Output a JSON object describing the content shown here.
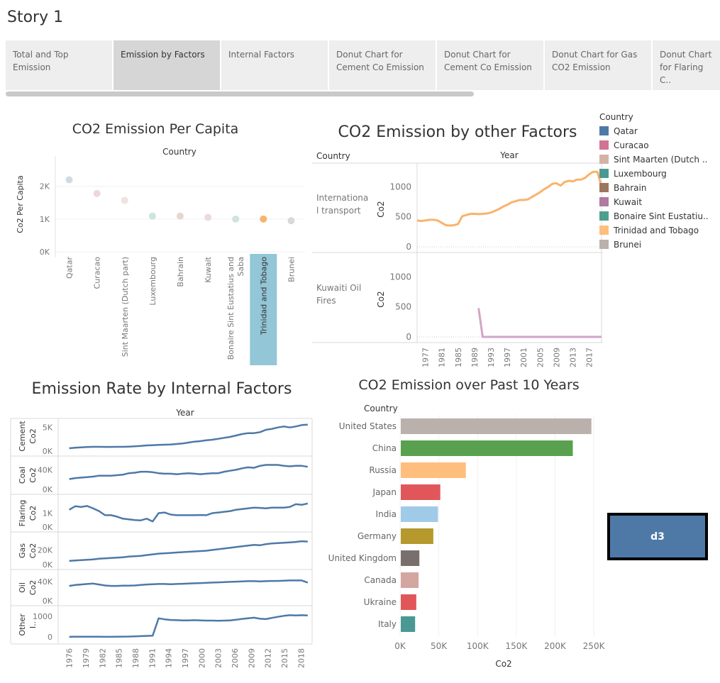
{
  "story": {
    "title": "Story 1",
    "tabs": [
      "Total and Top Emission",
      "Emission by Factors",
      "Internal Factors",
      "Donut Chart for Cement Co Emission",
      "Donut Chart for Cement Co Emission",
      "Donut Chart for Gas CO2 Emission",
      "Donut Chart for Flaring C.."
    ],
    "active_tab": 1
  },
  "button": {
    "label": "d3"
  },
  "chart_data": [
    {
      "type": "scatter",
      "title": "CO2 Emission Per Capita",
      "column_header": "Country",
      "ylabel": "Co2 Per Capita",
      "yticks": [
        "0K",
        "1K",
        "2K"
      ],
      "ylim": [
        0,
        2600
      ],
      "highlighted": "Trinidad and Tobago",
      "points": [
        {
          "country": "Qatar",
          "value": 2200,
          "color": "#cfdde3"
        },
        {
          "country": "Curacao",
          "value": 1780,
          "color": "#efd6dc"
        },
        {
          "country": "Sint Maarten (Dutch part)",
          "value": 1570,
          "color": "#ece4e1"
        },
        {
          "country": "Luxembourg",
          "value": 1090,
          "color": "#cde3df"
        },
        {
          "country": "Bahrain",
          "value": 1090,
          "color": "#e6d7d0"
        },
        {
          "country": "Kuwait",
          "value": 1050,
          "color": "#ead9e6"
        },
        {
          "country": "Bonaire Sint Eustatius and Saba",
          "value": 1000,
          "color": "#cfe3df"
        },
        {
          "country": "Trinidad and Tobago",
          "value": 1000,
          "color": "#f9b36b"
        },
        {
          "country": "Brunei",
          "value": 950,
          "color": "#dcd8d7"
        }
      ]
    },
    {
      "type": "line",
      "title": "CO2 Emission by other Factors",
      "row_header": "Country",
      "column_header": "Year",
      "ylabel": "Co2",
      "xticks": [
        "1977",
        "1981",
        "1985",
        "1989",
        "1993",
        "1997",
        "2001",
        "2005",
        "2009",
        "2013",
        "2017"
      ],
      "ylim": [
        0,
        1300
      ],
      "yticks": [
        "0",
        "500",
        "1000"
      ],
      "series": [
        {
          "name": "Internationa l transport",
          "color": "#f9b36b",
          "x": [
            1975,
            1976,
            1977,
            1978,
            1979,
            1980,
            1981,
            1982,
            1983,
            1984,
            1985,
            1986,
            1987,
            1988,
            1989,
            1990,
            1991,
            1992,
            1993,
            1994,
            1995,
            1996,
            1997,
            1998,
            1999,
            2000,
            2001,
            2002,
            2003,
            2004,
            2005,
            2006,
            2007,
            2008,
            2009,
            2010,
            2011,
            2012,
            2013,
            2014,
            2015,
            2016,
            2017,
            2018,
            2019,
            2020
          ],
          "y": [
            440,
            430,
            440,
            450,
            450,
            440,
            400,
            360,
            355,
            360,
            380,
            510,
            530,
            550,
            550,
            545,
            550,
            555,
            570,
            600,
            630,
            670,
            700,
            740,
            760,
            780,
            780,
            790,
            830,
            870,
            910,
            960,
            1000,
            1050,
            1060,
            1020,
            1080,
            1100,
            1090,
            1120,
            1120,
            1150,
            1210,
            1250,
            1250,
            1000
          ]
        },
        {
          "name": "Kuwaiti Oil Fires",
          "color": "#d3a4c9",
          "x": [
            1990,
            1991,
            1992,
            2020
          ],
          "y": [
            480,
            0,
            0,
            0
          ]
        }
      ]
    },
    {
      "type": "line",
      "title": "Emission Rate by Internal Factors",
      "column_header": "Year",
      "xticks": [
        "1976",
        "1979",
        "1982",
        "1985",
        "1988",
        "1991",
        "1994",
        "1997",
        "2000",
        "2003",
        "2006",
        "2009",
        "2012",
        "2015",
        "2018"
      ],
      "color": "#4e79a7",
      "panels": [
        {
          "label": "Cement Co2",
          "yticks": [
            "0K",
            "5K"
          ],
          "ylim": [
            0,
            6000
          ],
          "y": [
            600,
            700,
            800,
            850,
            900,
            900,
            880,
            880,
            900,
            900,
            950,
            1000,
            1100,
            1200,
            1250,
            1300,
            1350,
            1400,
            1500,
            1600,
            1800,
            2000,
            2100,
            2300,
            2400,
            2600,
            2800,
            3000,
            3300,
            3600,
            3800,
            3800,
            4000,
            4500,
            4700,
            5000,
            5200,
            5000,
            5200,
            5500,
            5600
          ]
        },
        {
          "label": "Coal Co2",
          "yticks": [
            "0K",
            "40K"
          ],
          "ylim": [
            0,
            55000
          ],
          "y": [
            21000,
            23000,
            24000,
            25000,
            26000,
            28000,
            28000,
            28000,
            29000,
            30000,
            33000,
            34000,
            36000,
            36000,
            35000,
            33000,
            32000,
            32000,
            31000,
            32000,
            33000,
            32000,
            31000,
            32000,
            33000,
            33000,
            36000,
            38000,
            40000,
            43000,
            45000,
            44000,
            48000,
            50000,
            50000,
            50000,
            48000,
            47000,
            48000,
            48000,
            46000
          ]
        },
        {
          "label": "Flaring Co2",
          "yticks": [
            "0K",
            "1K"
          ],
          "ylim": [
            0,
            1900
          ],
          "y": [
            1250,
            1500,
            1450,
            1520,
            1350,
            1150,
            850,
            850,
            750,
            600,
            550,
            500,
            480,
            600,
            400,
            1000,
            1050,
            900,
            850,
            850,
            850,
            850,
            870,
            850,
            1000,
            1050,
            1100,
            1150,
            1250,
            1300,
            1350,
            1400,
            1380,
            1350,
            1400,
            1400,
            1400,
            1450,
            1650,
            1600,
            1700
          ]
        },
        {
          "label": "Gas Co2",
          "yticks": [
            "0K",
            "20K"
          ],
          "ylim": [
            0,
            36000
          ],
          "y": [
            5000,
            5500,
            6000,
            6500,
            7000,
            8000,
            8500,
            9000,
            9500,
            10000,
            11000,
            11500,
            12000,
            13000,
            14000,
            15000,
            15500,
            16000,
            16500,
            17000,
            17500,
            18000,
            18500,
            19000,
            20000,
            21000,
            22000,
            23000,
            24000,
            25000,
            26000,
            27000,
            26500,
            28000,
            29000,
            29500,
            30000,
            30500,
            31000,
            32000,
            31500
          ]
        },
        {
          "label": "Oil Co2",
          "yticks": [
            "0K",
            "40K"
          ],
          "ylim": [
            0,
            52000
          ],
          "y": [
            31000,
            33000,
            34000,
            35000,
            36000,
            34000,
            32000,
            31000,
            31000,
            31500,
            31500,
            32000,
            33000,
            34000,
            34500,
            35000,
            35000,
            34500,
            35000,
            35500,
            36000,
            36500,
            37000,
            37500,
            38000,
            38500,
            39000,
            39500,
            40000,
            40500,
            41000,
            41000,
            40500,
            41000,
            41500,
            41500,
            42000,
            42500,
            42500,
            42500,
            38000
          ]
        },
        {
          "label": "Other I..",
          "yticks": [
            "0",
            "1000"
          ],
          "ylim": [
            -100,
            1200
          ],
          "y": [
            5,
            8,
            10,
            12,
            10,
            8,
            5,
            5,
            10,
            15,
            20,
            30,
            40,
            50,
            60,
            900,
            850,
            820,
            810,
            800,
            800,
            810,
            800,
            790,
            790,
            780,
            790,
            800,
            830,
            870,
            900,
            930,
            880,
            860,
            920,
            970,
            1020,
            1050,
            1040,
            1050,
            1040
          ]
        }
      ]
    },
    {
      "type": "bar",
      "orientation": "horizontal",
      "title": "CO2 Emission over Past 10 Years",
      "row_header": "Country",
      "xlabel": "Co2",
      "xticks": [
        "0K",
        "50K",
        "100K",
        "150K",
        "200K",
        "250K"
      ],
      "xlim": [
        0,
        260000
      ],
      "categories": [
        "United States",
        "China",
        "Russia",
        "Japan",
        "India",
        "Germany",
        "United Kingdom",
        "Canada",
        "Ukraine",
        "Italy"
      ],
      "values": [
        246000,
        222000,
        84000,
        51000,
        48000,
        42000,
        24000,
        23000,
        20000,
        18500
      ],
      "colors": [
        "#bab0ac",
        "#59a14f",
        "#ffbe7d",
        "#e15759",
        "#a0cbe8",
        "#b6992d",
        "#79706e",
        "#d4a6a0",
        "#e15759",
        "#499894"
      ]
    }
  ],
  "legend": {
    "title": "Country",
    "items": [
      {
        "label": "Qatar",
        "color": "#4e79a7"
      },
      {
        "label": "Curacao",
        "color": "#d37295"
      },
      {
        "label": "Sint Maarten (Dutch ..",
        "color": "#d4b3a6"
      },
      {
        "label": "Luxembourg",
        "color": "#499894"
      },
      {
        "label": "Bahrain",
        "color": "#9d7660"
      },
      {
        "label": "Kuwait",
        "color": "#b07aa1"
      },
      {
        "label": "Bonaire Sint Eustatiu..",
        "color": "#4e9f8e"
      },
      {
        "label": "Trinidad and Tobago",
        "color": "#ffbe7d"
      },
      {
        "label": "Brunei",
        "color": "#bab0ac"
      }
    ]
  }
}
